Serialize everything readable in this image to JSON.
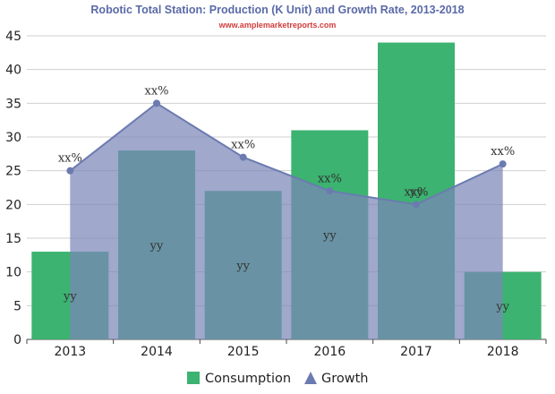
{
  "chart_data": {
    "type": "bar",
    "title": "Robotic Total Station: Production (K Unit) and Growth Rate, 2013-2018",
    "subtitle": "www.amplemarketreports.com",
    "categories": [
      "2013",
      "2014",
      "2015",
      "2016",
      "2017",
      "2018"
    ],
    "ylim": [
      0,
      45
    ],
    "yticks": [
      "0",
      "5",
      "10",
      "15",
      "20",
      "25",
      "30",
      "35",
      "40",
      "45"
    ],
    "grid": true,
    "legend_position": "bottom",
    "series": [
      {
        "name": "Consumption",
        "kind": "bar",
        "color": "#3cb371",
        "values": [
          13,
          28,
          22,
          31,
          44,
          10
        ],
        "labels": [
          "yy",
          "yy",
          "yy",
          "yy",
          "yy",
          "yy"
        ]
      },
      {
        "name": "Growth",
        "kind": "area-line",
        "color": "#6b7bb0",
        "fill": "#7c87b8",
        "values": [
          25,
          35,
          27,
          22,
          20,
          26
        ],
        "labels": [
          "xx%",
          "xx%",
          "xx%",
          "xx%",
          "xx%",
          "xx%"
        ]
      }
    ]
  }
}
